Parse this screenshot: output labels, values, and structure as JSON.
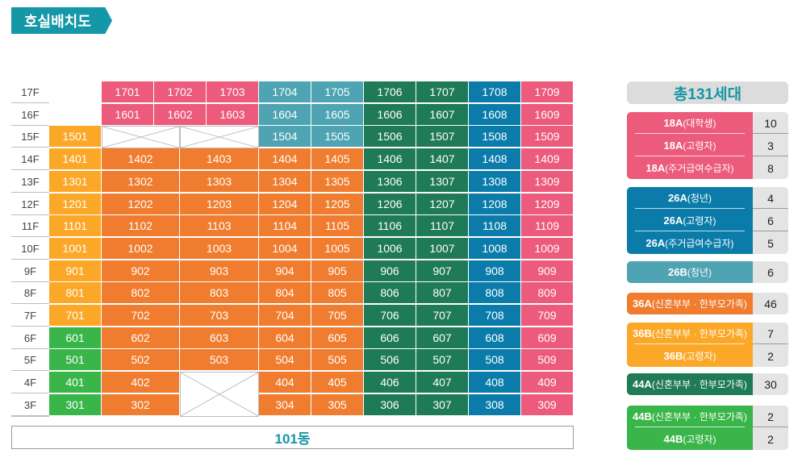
{
  "title": "호실배치도",
  "building_label": "101동",
  "colors": {
    "18A": "#ec5a7c",
    "26A": "#0b7caa",
    "26B": "#4ea4b2",
    "36A": "#f07d2f",
    "36B": "#fba828",
    "44A": "#1f7a57",
    "44B": "#3ab54a",
    "title": "#1497a6"
  },
  "floors": [
    {
      "floor": "17F",
      "units": [
        {
          "no": "1701",
          "type": "18A"
        },
        {
          "no": "1702",
          "type": "18A"
        },
        {
          "no": "1703",
          "type": "18A"
        },
        {
          "no": "1704",
          "type": "26B"
        },
        {
          "no": "1705",
          "type": "26B"
        },
        {
          "no": "1706",
          "type": "44A"
        },
        {
          "no": "1707",
          "type": "44A"
        },
        {
          "no": "1708",
          "type": "26A"
        },
        {
          "no": "1709",
          "type": "18A"
        }
      ]
    },
    {
      "floor": "16F",
      "units": [
        {
          "no": "1601",
          "type": "18A"
        },
        {
          "no": "1602",
          "type": "18A"
        },
        {
          "no": "1603",
          "type": "18A"
        },
        {
          "no": "1604",
          "type": "26B"
        },
        {
          "no": "1605",
          "type": "26B"
        },
        {
          "no": "1606",
          "type": "44A"
        },
        {
          "no": "1607",
          "type": "44A"
        },
        {
          "no": "1608",
          "type": "26A"
        },
        {
          "no": "1609",
          "type": "18A"
        }
      ]
    },
    {
      "floor": "15F",
      "units": [
        {
          "no": "1501",
          "type": "36B"
        },
        {
          "no": "1504",
          "type": "26B"
        },
        {
          "no": "1505",
          "type": "26B"
        },
        {
          "no": "1506",
          "type": "44A"
        },
        {
          "no": "1507",
          "type": "44A"
        },
        {
          "no": "1508",
          "type": "26A"
        },
        {
          "no": "1509",
          "type": "18A"
        }
      ]
    },
    {
      "floor": "14F",
      "units": [
        {
          "no": "1401",
          "type": "36B"
        },
        {
          "no": "1402",
          "type": "36A"
        },
        {
          "no": "1403",
          "type": "36A"
        },
        {
          "no": "1404",
          "type": "36A"
        },
        {
          "no": "1405",
          "type": "36A"
        },
        {
          "no": "1406",
          "type": "44A"
        },
        {
          "no": "1407",
          "type": "44A"
        },
        {
          "no": "1408",
          "type": "26A"
        },
        {
          "no": "1409",
          "type": "18A"
        }
      ]
    },
    {
      "floor": "13F",
      "units": [
        {
          "no": "1301",
          "type": "36B"
        },
        {
          "no": "1302",
          "type": "36A"
        },
        {
          "no": "1303",
          "type": "36A"
        },
        {
          "no": "1304",
          "type": "36A"
        },
        {
          "no": "1305",
          "type": "36A"
        },
        {
          "no": "1306",
          "type": "44A"
        },
        {
          "no": "1307",
          "type": "44A"
        },
        {
          "no": "1308",
          "type": "26A"
        },
        {
          "no": "1309",
          "type": "18A"
        }
      ]
    },
    {
      "floor": "12F",
      "units": [
        {
          "no": "1201",
          "type": "36B"
        },
        {
          "no": "1202",
          "type": "36A"
        },
        {
          "no": "1203",
          "type": "36A"
        },
        {
          "no": "1204",
          "type": "36A"
        },
        {
          "no": "1205",
          "type": "36A"
        },
        {
          "no": "1206",
          "type": "44A"
        },
        {
          "no": "1207",
          "type": "44A"
        },
        {
          "no": "1208",
          "type": "26A"
        },
        {
          "no": "1209",
          "type": "18A"
        }
      ]
    },
    {
      "floor": "11F",
      "units": [
        {
          "no": "1101",
          "type": "36B"
        },
        {
          "no": "1102",
          "type": "36A"
        },
        {
          "no": "1103",
          "type": "36A"
        },
        {
          "no": "1104",
          "type": "36A"
        },
        {
          "no": "1105",
          "type": "36A"
        },
        {
          "no": "1106",
          "type": "44A"
        },
        {
          "no": "1107",
          "type": "44A"
        },
        {
          "no": "1108",
          "type": "26A"
        },
        {
          "no": "1109",
          "type": "18A"
        }
      ]
    },
    {
      "floor": "10F",
      "units": [
        {
          "no": "1001",
          "type": "36B"
        },
        {
          "no": "1002",
          "type": "36A"
        },
        {
          "no": "1003",
          "type": "36A"
        },
        {
          "no": "1004",
          "type": "36A"
        },
        {
          "no": "1005",
          "type": "36A"
        },
        {
          "no": "1006",
          "type": "44A"
        },
        {
          "no": "1007",
          "type": "44A"
        },
        {
          "no": "1008",
          "type": "26A"
        },
        {
          "no": "1009",
          "type": "18A"
        }
      ]
    },
    {
      "floor": "9F",
      "units": [
        {
          "no": "901",
          "type": "36B"
        },
        {
          "no": "902",
          "type": "36A"
        },
        {
          "no": "903",
          "type": "36A"
        },
        {
          "no": "904",
          "type": "36A"
        },
        {
          "no": "905",
          "type": "36A"
        },
        {
          "no": "906",
          "type": "44A"
        },
        {
          "no": "907",
          "type": "44A"
        },
        {
          "no": "908",
          "type": "26A"
        },
        {
          "no": "909",
          "type": "18A"
        }
      ]
    },
    {
      "floor": "8F",
      "units": [
        {
          "no": "801",
          "type": "36B"
        },
        {
          "no": "802",
          "type": "36A"
        },
        {
          "no": "803",
          "type": "36A"
        },
        {
          "no": "804",
          "type": "36A"
        },
        {
          "no": "805",
          "type": "36A"
        },
        {
          "no": "806",
          "type": "44A"
        },
        {
          "no": "807",
          "type": "44A"
        },
        {
          "no": "808",
          "type": "26A"
        },
        {
          "no": "809",
          "type": "18A"
        }
      ]
    },
    {
      "floor": "7F",
      "units": [
        {
          "no": "701",
          "type": "36B"
        },
        {
          "no": "702",
          "type": "36A"
        },
        {
          "no": "703",
          "type": "36A"
        },
        {
          "no": "704",
          "type": "36A"
        },
        {
          "no": "705",
          "type": "36A"
        },
        {
          "no": "706",
          "type": "44A"
        },
        {
          "no": "707",
          "type": "44A"
        },
        {
          "no": "708",
          "type": "26A"
        },
        {
          "no": "709",
          "type": "18A"
        }
      ]
    },
    {
      "floor": "6F",
      "units": [
        {
          "no": "601",
          "type": "44B"
        },
        {
          "no": "602",
          "type": "36A"
        },
        {
          "no": "603",
          "type": "36A"
        },
        {
          "no": "604",
          "type": "36A"
        },
        {
          "no": "605",
          "type": "36A"
        },
        {
          "no": "606",
          "type": "44A"
        },
        {
          "no": "607",
          "type": "44A"
        },
        {
          "no": "608",
          "type": "26A"
        },
        {
          "no": "609",
          "type": "18A"
        }
      ]
    },
    {
      "floor": "5F",
      "units": [
        {
          "no": "501",
          "type": "44B"
        },
        {
          "no": "502",
          "type": "36A"
        },
        {
          "no": "503",
          "type": "36A"
        },
        {
          "no": "504",
          "type": "36A"
        },
        {
          "no": "505",
          "type": "36A"
        },
        {
          "no": "506",
          "type": "44A"
        },
        {
          "no": "507",
          "type": "44A"
        },
        {
          "no": "508",
          "type": "26A"
        },
        {
          "no": "509",
          "type": "18A"
        }
      ]
    },
    {
      "floor": "4F",
      "units": [
        {
          "no": "401",
          "type": "44B"
        },
        {
          "no": "402",
          "type": "36A"
        },
        {
          "no": "404",
          "type": "36A"
        },
        {
          "no": "405",
          "type": "36A"
        },
        {
          "no": "406",
          "type": "44A"
        },
        {
          "no": "407",
          "type": "44A"
        },
        {
          "no": "408",
          "type": "26A"
        },
        {
          "no": "409",
          "type": "18A"
        }
      ]
    },
    {
      "floor": "3F",
      "units": [
        {
          "no": "301",
          "type": "44B"
        },
        {
          "no": "302",
          "type": "36A"
        },
        {
          "no": "304",
          "type": "36A"
        },
        {
          "no": "305",
          "type": "36A"
        },
        {
          "no": "306",
          "type": "44A"
        },
        {
          "no": "307",
          "type": "44A"
        },
        {
          "no": "308",
          "type": "26A"
        },
        {
          "no": "309",
          "type": "18A"
        }
      ]
    }
  ],
  "legend": {
    "total": "총131세대",
    "groups": [
      {
        "type": "18A",
        "entries": [
          {
            "code": "18A",
            "sub": "(대학생)",
            "count": "10"
          },
          {
            "code": "18A",
            "sub": "(고령자)",
            "count": "3"
          },
          {
            "code": "18A",
            "sub": "(주거급여수급자)",
            "count": "8"
          }
        ]
      },
      {
        "type": "26A",
        "entries": [
          {
            "code": "26A",
            "sub": "(청년)",
            "count": "4"
          },
          {
            "code": "26A",
            "sub": "(고령자)",
            "count": "6"
          },
          {
            "code": "26A",
            "sub": "(주거급여수급자)",
            "count": "5"
          }
        ]
      },
      {
        "type": "26B",
        "entries": [
          {
            "code": "26B",
            "sub": "(청년)",
            "count": "6"
          }
        ]
      },
      {
        "type": "36A",
        "entries": [
          {
            "code": "36A",
            "sub": "(신혼부부 · 한부모가족)",
            "count": "46"
          }
        ]
      },
      {
        "type": "36B",
        "entries": [
          {
            "code": "36B",
            "sub": "(신혼부부 · 한부모가족)",
            "count": "7"
          },
          {
            "code": "36B",
            "sub": "(고령자)",
            "count": "2"
          }
        ]
      },
      {
        "type": "44A",
        "entries": [
          {
            "code": "44A",
            "sub": "(신혼부부 · 한부모가족)",
            "count": "30"
          }
        ]
      },
      {
        "type": "44B",
        "entries": [
          {
            "code": "44B",
            "sub": "(신혼부부 · 한부모가족)",
            "count": "2"
          },
          {
            "code": "44B",
            "sub": "(고령자)",
            "count": "2"
          }
        ]
      }
    ]
  }
}
